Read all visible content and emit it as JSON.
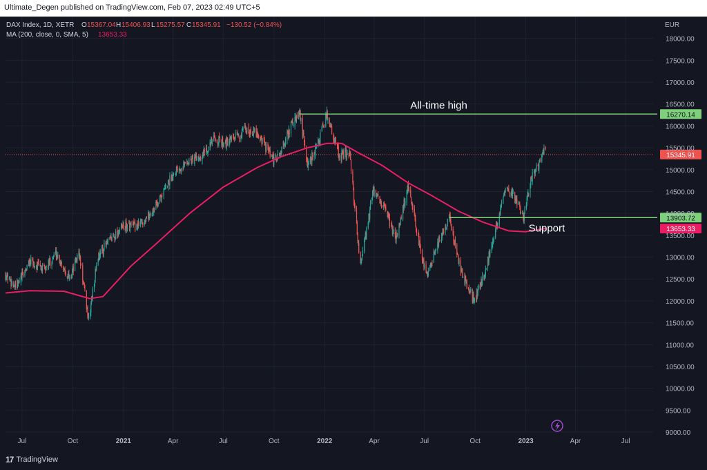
{
  "header": {
    "published_by": "Ultimate_Degen published on TradingView.com, Feb 07, 2023 02:49 UTC+5"
  },
  "legend": {
    "symbol": "DAX Index, 1D, XETR",
    "o_label": "O",
    "o": "15367.04",
    "h_label": "H",
    "h": "15406.93",
    "l_label": "L",
    "l": "15275.57",
    "c_label": "C",
    "c": "15345.91",
    "change": "−130.52 (−0.84%)",
    "ma_label": "MA (200, close, 0, SMA, 5)",
    "ma_value": "13653.33"
  },
  "currency": "EUR",
  "colors": {
    "bg": "#141622",
    "up": "#26a69a",
    "down": "#ef5350",
    "ma": "#e91e63",
    "level": "#7ed07b",
    "grid": "#1e2130",
    "axis_text": "#b2b5be"
  },
  "chart_data": {
    "type": "candlestick",
    "symbol": "DAX Index",
    "ylim": [
      9000,
      18500
    ],
    "yticks": [
      9000,
      9500,
      10000,
      10500,
      11000,
      11500,
      12000,
      12500,
      13000,
      13500,
      14000,
      14500,
      15000,
      15500,
      16000,
      16500,
      17000,
      17500,
      18000
    ],
    "ytick_labels": [
      "9000.00",
      "9500.00",
      "10000.00",
      "10500.00",
      "11000.00",
      "11500.00",
      "12000.00",
      "12500.00",
      "13000.00",
      "13500.00",
      "14000.00",
      "14500.00",
      "15000.00",
      "15500.00",
      "16000.00",
      "16500.00",
      "17000.00",
      "17500.00",
      "18000.00"
    ],
    "xticks": [
      {
        "label": "Jul",
        "date": "2020-07-01"
      },
      {
        "label": "Oct",
        "date": "2020-10-01"
      },
      {
        "label": "2021",
        "date": "2021-01-01"
      },
      {
        "label": "Apr",
        "date": "2021-04-01"
      },
      {
        "label": "Jul",
        "date": "2021-07-01"
      },
      {
        "label": "Oct",
        "date": "2021-10-01"
      },
      {
        "label": "2022",
        "date": "2022-01-01"
      },
      {
        "label": "Apr",
        "date": "2022-04-01"
      },
      {
        "label": "Jul",
        "date": "2022-07-01"
      },
      {
        "label": "Oct",
        "date": "2022-10-01"
      },
      {
        "label": "2023",
        "date": "2023-01-01"
      },
      {
        "label": "Apr",
        "date": "2023-04-01"
      },
      {
        "label": "Jul",
        "date": "2023-07-01"
      }
    ],
    "price_path": [
      [
        "2020-06-01",
        12600
      ],
      [
        "2020-06-20",
        12300
      ],
      [
        "2020-07-15",
        12900
      ],
      [
        "2020-08-10",
        12700
      ],
      [
        "2020-09-01",
        13100
      ],
      [
        "2020-09-25",
        12500
      ],
      [
        "2020-10-12",
        13100
      ],
      [
        "2020-10-30",
        11550
      ],
      [
        "2020-11-15",
        13000
      ],
      [
        "2020-12-01",
        13300
      ],
      [
        "2020-12-31",
        13700
      ],
      [
        "2021-01-25",
        13700
      ],
      [
        "2021-02-20",
        14000
      ],
      [
        "2021-03-15",
        14500
      ],
      [
        "2021-04-05",
        15000
      ],
      [
        "2021-05-01",
        15200
      ],
      [
        "2021-05-20",
        15300
      ],
      [
        "2021-06-15",
        15700
      ],
      [
        "2021-07-10",
        15600
      ],
      [
        "2021-08-10",
        15900
      ],
      [
        "2021-09-01",
        15850
      ],
      [
        "2021-09-30",
        15200
      ],
      [
        "2021-10-10",
        15300
      ],
      [
        "2021-11-01",
        16000
      ],
      [
        "2021-11-17",
        16270
      ],
      [
        "2021-12-01",
        15100
      ],
      [
        "2021-12-20",
        15600
      ],
      [
        "2022-01-05",
        16270
      ],
      [
        "2022-01-28",
        15300
      ],
      [
        "2022-02-15",
        15400
      ],
      [
        "2022-03-07",
        12800
      ],
      [
        "2022-03-30",
        14500
      ],
      [
        "2022-04-20",
        14100
      ],
      [
        "2022-05-10",
        13400
      ],
      [
        "2022-06-01",
        14600
      ],
      [
        "2022-06-25",
        13100
      ],
      [
        "2022-07-05",
        12600
      ],
      [
        "2022-07-25",
        13300
      ],
      [
        "2022-08-15",
        13900
      ],
      [
        "2022-09-05",
        12700
      ],
      [
        "2022-09-29",
        12000
      ],
      [
        "2022-10-20",
        12700
      ],
      [
        "2022-11-10",
        13800
      ],
      [
        "2022-11-25",
        14500
      ],
      [
        "2022-12-12",
        14400
      ],
      [
        "2022-12-28",
        13900
      ],
      [
        "2023-01-10",
        14800
      ],
      [
        "2023-01-25",
        15100
      ],
      [
        "2023-02-03",
        15450
      ]
    ],
    "ma_path": [
      [
        "2020-06-01",
        12180
      ],
      [
        "2020-07-15",
        12230
      ],
      [
        "2020-09-15",
        12220
      ],
      [
        "2020-11-01",
        12050
      ],
      [
        "2020-11-25",
        12100
      ],
      [
        "2021-01-15",
        12800
      ],
      [
        "2021-03-01",
        13300
      ],
      [
        "2021-05-01",
        14000
      ],
      [
        "2021-07-01",
        14600
      ],
      [
        "2021-09-01",
        15050
      ],
      [
        "2021-10-15",
        15300
      ],
      [
        "2021-12-01",
        15500
      ],
      [
        "2022-01-05",
        15600
      ],
      [
        "2022-02-01",
        15600
      ],
      [
        "2022-03-01",
        15400
      ],
      [
        "2022-04-15",
        15100
      ],
      [
        "2022-06-01",
        14700
      ],
      [
        "2022-07-15",
        14400
      ],
      [
        "2022-09-01",
        14050
      ],
      [
        "2022-10-15",
        13800
      ],
      [
        "2022-12-01",
        13600
      ],
      [
        "2022-12-31",
        13580
      ],
      [
        "2023-01-20",
        13620
      ],
      [
        "2023-02-06",
        13653
      ]
    ],
    "last_price": 15345.91,
    "ma_last": 13653.33,
    "levels": [
      {
        "name": "All-time high",
        "value": 16270.14,
        "label": "16270.14",
        "annotation": "All-time high",
        "start": "2021-11-17"
      },
      {
        "name": "Support",
        "value": 13903.72,
        "label": "13903.72",
        "annotation": "Support",
        "start": "2022-08-15"
      }
    ],
    "badges": {
      "last": "15345.91",
      "ma": "13653.33"
    }
  },
  "footer": {
    "logo_text": "TradingView",
    "logo_mark": "17"
  }
}
